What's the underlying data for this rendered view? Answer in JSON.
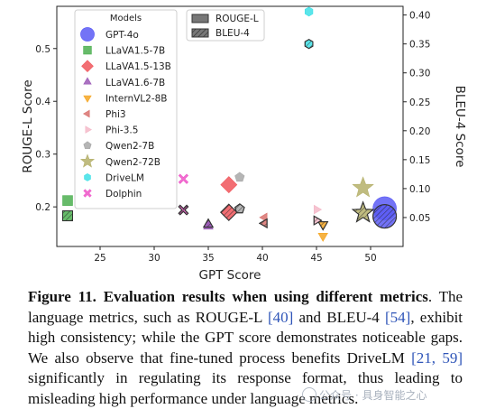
{
  "chart_data": {
    "type": "scatter",
    "xlabel": "GPT Score",
    "ylabel_left": "ROUGE-L Score",
    "ylabel_right": "BLEU-4 Score",
    "xlim": [
      21,
      53
    ],
    "ylim_left": [
      0.125,
      0.58
    ],
    "ylim_right": [
      0.0,
      0.415
    ],
    "xticks": [
      25,
      30,
      35,
      40,
      45,
      50
    ],
    "yticks_left": [
      0.2,
      0.3,
      0.4,
      0.5
    ],
    "yticks_right": [
      0.05,
      0.1,
      0.15,
      0.2,
      0.25,
      0.3,
      0.35,
      0.4
    ],
    "ytick_labels_left": [
      "0.2",
      "0.3",
      "0.4",
      "0.5"
    ],
    "ytick_labels_right": [
      "0.05",
      "0.10",
      "0.15",
      "0.20",
      "0.25",
      "0.30",
      "0.35",
      "0.40"
    ],
    "legend_models_title": "Models",
    "legend_placement": "top-left",
    "metric_legend": [
      {
        "name": "ROUGE-L",
        "hatch": false
      },
      {
        "name": "BLEU-4",
        "hatch": true
      }
    ],
    "series": [
      {
        "name": "GPT-4o",
        "marker": "circle",
        "size": 13,
        "color": "#5b5bf5",
        "rouge": {
          "x": 51.3,
          "y": 0.197
        },
        "bleu": {
          "x": 51.3,
          "y": 0.052
        }
      },
      {
        "name": "LLaVA1.5-7B",
        "marker": "square",
        "size": 5.5,
        "color": "#4caf50",
        "rouge": {
          "x": 22.0,
          "y": 0.212
        },
        "bleu": {
          "x": 22.0,
          "y": 0.053
        }
      },
      {
        "name": "LLaVA1.5-13B",
        "marker": "diamond",
        "size": 9,
        "color": "#f0555b",
        "rouge": {
          "x": 36.9,
          "y": 0.242
        },
        "bleu": {
          "x": 36.9,
          "y": 0.059
        }
      },
      {
        "name": "LLaVA1.6-7B",
        "marker": "triangle-up",
        "size": 6,
        "color": "#9b59b6",
        "rouge": {
          "x": 35.0,
          "y": 0.163
        },
        "bleu": {
          "x": 35.0,
          "y": 0.038
        }
      },
      {
        "name": "InternVL2-8B",
        "marker": "triangle-down",
        "size": 6,
        "color": "#f5a623",
        "rouge": {
          "x": 45.6,
          "y": 0.145
        },
        "bleu": {
          "x": 45.6,
          "y": 0.038
        }
      },
      {
        "name": "Phi3",
        "marker": "triangle-left",
        "size": 5.5,
        "color": "#d9726f",
        "rouge": {
          "x": 40.2,
          "y": 0.18
        },
        "bleu": {
          "x": 40.2,
          "y": 0.04
        }
      },
      {
        "name": "Phi-3.5",
        "marker": "triangle-right",
        "size": 5.5,
        "color": "#f4b8c8",
        "rouge": {
          "x": 45.0,
          "y": 0.195
        },
        "bleu": {
          "x": 45.0,
          "y": 0.045
        }
      },
      {
        "name": "Qwen2-7B",
        "marker": "pentagon",
        "size": 5.5,
        "color": "#a8a8a8",
        "rouge": {
          "x": 37.9,
          "y": 0.256
        },
        "bleu": {
          "x": 37.9,
          "y": 0.065
        }
      },
      {
        "name": "Qwen2-72B",
        "marker": "star",
        "size": 12,
        "color": "#b5b06a",
        "rouge": {
          "x": 49.3,
          "y": 0.236
        },
        "bleu": {
          "x": 49.3,
          "y": 0.058
        }
      },
      {
        "name": "DriveLM",
        "marker": "hexagon",
        "size": 5,
        "color": "#3ee0e6",
        "rouge": {
          "x": 44.3,
          "y": 0.57
        },
        "bleu": {
          "x": 44.3,
          "y": 0.35
        }
      },
      {
        "name": "Dolphin",
        "marker": "x",
        "size": 5.5,
        "color": "#ee56c8",
        "rouge": {
          "x": 32.7,
          "y": 0.253
        },
        "bleu": {
          "x": 32.7,
          "y": 0.063
        }
      }
    ]
  },
  "caption": {
    "label": "Figure 11.",
    "title": "Evaluation results when using different metrics",
    "part1": ". The language metrics, such as ROUGE-L ",
    "cite1": "[40]",
    "part2": " and BLEU-4 ",
    "cite2": "[54]",
    "part3": ", exhibit high consistency; while the GPT score demonstrates noticeable gaps. We also observe that fine-tuned process benefits DriveLM ",
    "cite3": "[21, 59]",
    "part4": " significantly in regulating its response format, thus leading to misleading high performance under language metrics."
  },
  "watermark": {
    "text": "公众号 · 具身智能之心"
  },
  "colors": {
    "axis": "#222222",
    "text": "#111111",
    "cite": "#2f55b8"
  }
}
